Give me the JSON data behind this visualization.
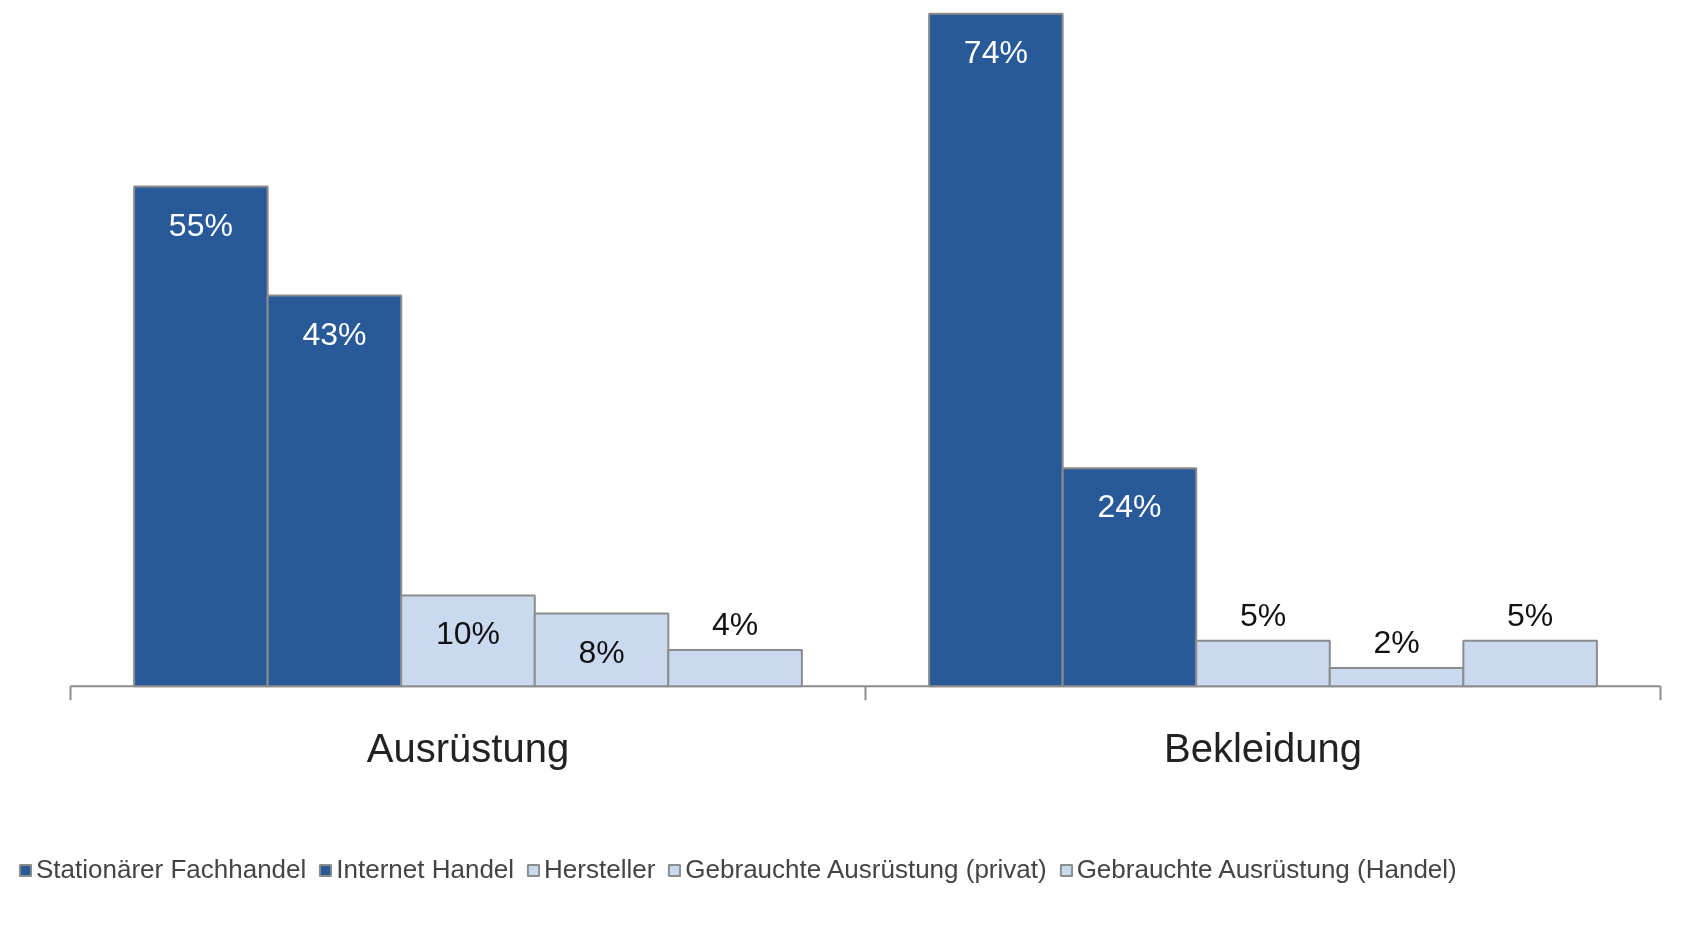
{
  "chart_data": {
    "type": "bar",
    "categories": [
      "Ausrüstung",
      "Bekleidung"
    ],
    "series": [
      {
        "name": "Stationärer Fachhandel",
        "color": "#285a99",
        "values": [
          55,
          74
        ],
        "value_labels": [
          "55%",
          "74%"
        ]
      },
      {
        "name": "Internet Handel",
        "color": "#285a99",
        "values": [
          43,
          24
        ],
        "value_labels": [
          "43%",
          "24%"
        ]
      },
      {
        "name": "Hersteller",
        "color": "#c9daf0",
        "values": [
          10,
          5
        ],
        "value_labels": [
          "10%",
          "5%"
        ]
      },
      {
        "name": "Gebrauchte Ausrüstung (privat)",
        "color": "#c9daf0",
        "values": [
          8,
          2
        ],
        "value_labels": [
          "8%",
          "2%"
        ]
      },
      {
        "name": "Gebrauchte Ausrüstung (Handel)",
        "color": "#c9daf0",
        "values": [
          4,
          5
        ],
        "value_labels": [
          "4%",
          "5%"
        ]
      }
    ],
    "legend": "bottom",
    "tick_labels": "x",
    "grid": false
  }
}
